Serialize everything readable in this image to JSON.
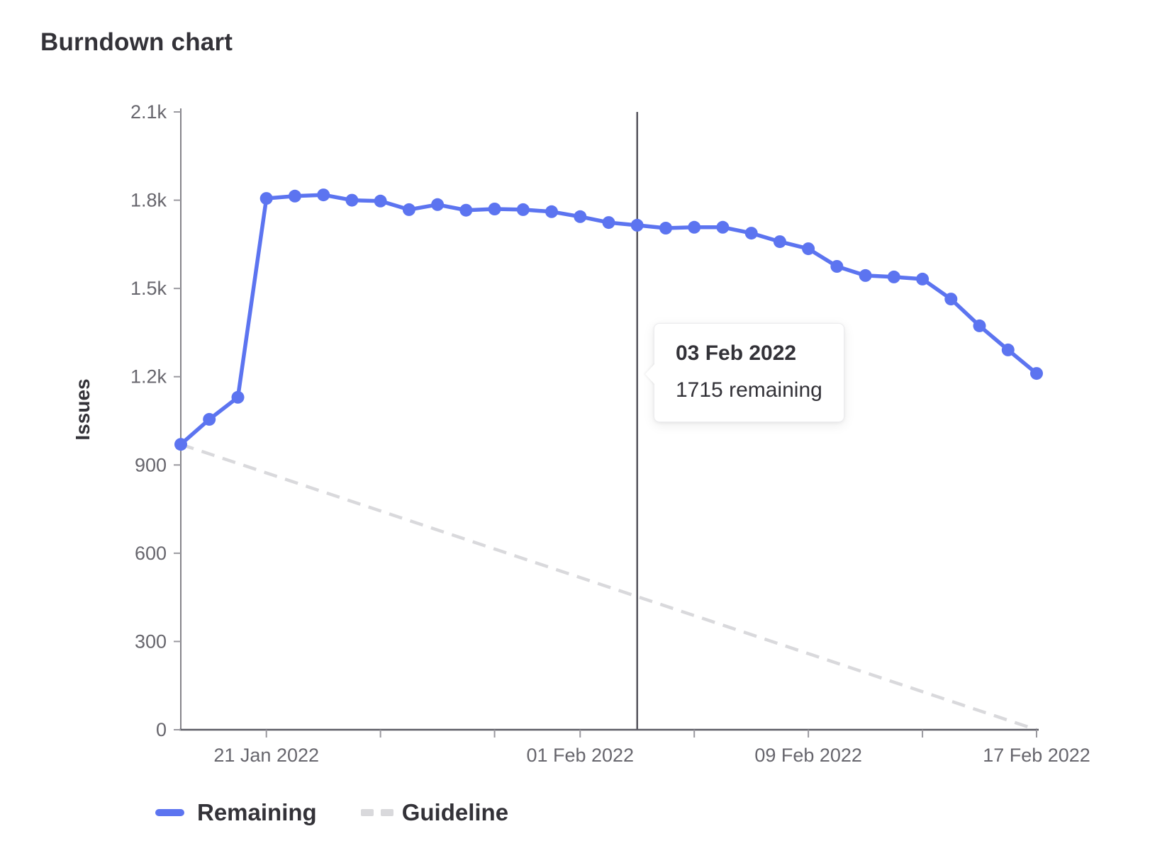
{
  "title": "Burndown chart",
  "ylabel": "Issues",
  "legend": {
    "remaining_label": "Remaining",
    "guideline_label": "Guideline"
  },
  "tooltip": {
    "date": "03 Feb 2022",
    "value_text": "1715 remaining"
  },
  "colors": {
    "remaining": "#5c74f0",
    "guideline": "#d9d9dc",
    "x_axis": "#5e5d66",
    "y_axis": "#85848a",
    "tick": "#9a999f",
    "tick_label": "#67666d",
    "current_line": "#55545c",
    "text": "#333238"
  },
  "chart_data": {
    "type": "line",
    "title": "Burndown chart",
    "xlabel": "",
    "ylabel": "Issues",
    "ylim": [
      0,
      2100
    ],
    "grid": false,
    "legend_position": "bottom-left",
    "x": [
      "18 Jan 2022",
      "19 Jan 2022",
      "20 Jan 2022",
      "21 Jan 2022",
      "22 Jan 2022",
      "23 Jan 2022",
      "24 Jan 2022",
      "25 Jan 2022",
      "26 Jan 2022",
      "27 Jan 2022",
      "28 Jan 2022",
      "29 Jan 2022",
      "30 Jan 2022",
      "31 Jan 2022",
      "01 Feb 2022",
      "02 Feb 2022",
      "03 Feb 2022",
      "04 Feb 2022",
      "05 Feb 2022",
      "06 Feb 2022",
      "07 Feb 2022",
      "08 Feb 2022",
      "09 Feb 2022",
      "10 Feb 2022",
      "11 Feb 2022",
      "12 Feb 2022",
      "13 Feb 2022",
      "14 Feb 2022",
      "15 Feb 2022",
      "16 Feb 2022",
      "17 Feb 2022"
    ],
    "series": [
      {
        "name": "Remaining",
        "style": "solid",
        "values": [
          970,
          1055,
          1130,
          1806,
          1814,
          1818,
          1800,
          1797,
          1768,
          1785,
          1766,
          1770,
          1768,
          1761,
          1744,
          1724,
          1715,
          1705,
          1708,
          1708,
          1688,
          1659,
          1635,
          1575,
          1544,
          1539,
          1532,
          1464,
          1373,
          1291,
          1211
        ]
      },
      {
        "name": "Guideline",
        "style": "dashed",
        "endpoints": [
          970,
          0
        ]
      }
    ],
    "y_ticks": [
      {
        "value": 0,
        "label": "0"
      },
      {
        "value": 300,
        "label": "300"
      },
      {
        "value": 600,
        "label": "600"
      },
      {
        "value": 900,
        "label": "900"
      },
      {
        "value": 1200,
        "label": "1.2k"
      },
      {
        "value": 1500,
        "label": "1.5k"
      },
      {
        "value": 1800,
        "label": "1.8k"
      },
      {
        "value": 2100,
        "label": "2.1k"
      }
    ],
    "x_tick_days": [
      3,
      7,
      11,
      14,
      18,
      22,
      26,
      30
    ],
    "x_labels": [
      {
        "day": 3,
        "text": "21 Jan 2022"
      },
      {
        "day": 14,
        "text": "01 Feb 2022"
      },
      {
        "day": 22,
        "text": "09 Feb 2022"
      },
      {
        "day": 30,
        "text": "17 Feb 2022"
      }
    ],
    "current": {
      "day": 16,
      "date": "03 Feb 2022",
      "value": 1715
    }
  }
}
